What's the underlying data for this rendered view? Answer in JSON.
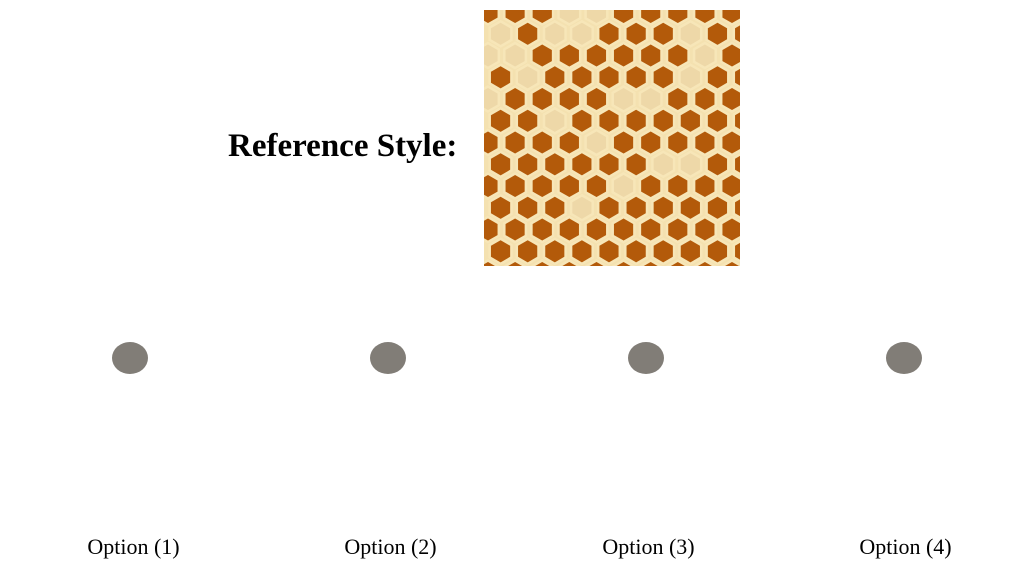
{
  "reference": {
    "label": "Reference Style:",
    "cell_color": "#b35a0a",
    "pale_cell_color": "#eed8a8",
    "border_color": "#f7e6b8"
  },
  "options": [
    {
      "label": "Option (1)",
      "pattern": "hex-spots"
    },
    {
      "label": "Option (2)",
      "pattern": "blotches"
    },
    {
      "label": "Option (3)",
      "pattern": "small-spots"
    },
    {
      "label": "Option (4)",
      "pattern": "small-spots"
    }
  ]
}
